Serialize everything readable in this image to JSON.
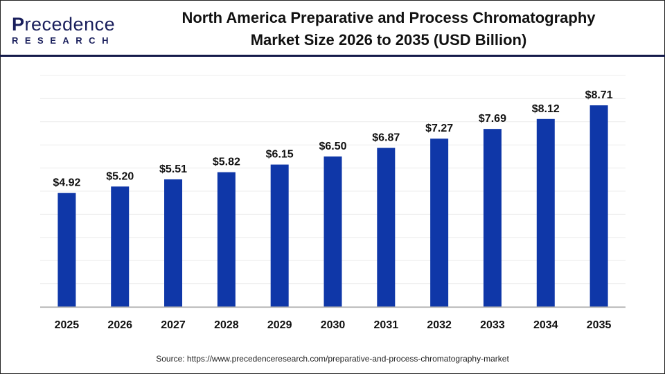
{
  "logo": {
    "brand_main": "recedence",
    "brand_initial": "P",
    "brand_sub": "RESEARCH"
  },
  "header": {
    "title_line1": "North America Preparative and Process Chromatography",
    "title_line2": "Market Size 2026 to 2035 (USD Billion)"
  },
  "source": "Source: https://www.precedenceresearch.com/preparative-and-process-chromatography-market",
  "chart_data": {
    "type": "bar",
    "title": "North America Preparative and Process Chromatography Market Size 2026 to 2035 (USD Billion)",
    "categories": [
      "2025",
      "2026",
      "2027",
      "2028",
      "2029",
      "2030",
      "2031",
      "2032",
      "2033",
      "2034",
      "2035"
    ],
    "values": [
      4.92,
      5.2,
      5.51,
      5.82,
      6.15,
      6.5,
      6.87,
      7.27,
      7.69,
      8.12,
      8.71
    ],
    "labels": [
      "$4.92",
      "$5.20",
      "$5.51",
      "$5.82",
      "$6.15",
      "$6.50",
      "$6.87",
      "$7.27",
      "$7.69",
      "$8.12",
      "$8.71"
    ],
    "xlabel": "",
    "ylabel": "",
    "ylim": [
      0,
      10
    ],
    "grid": true,
    "bar_color": "#0f37a8"
  }
}
